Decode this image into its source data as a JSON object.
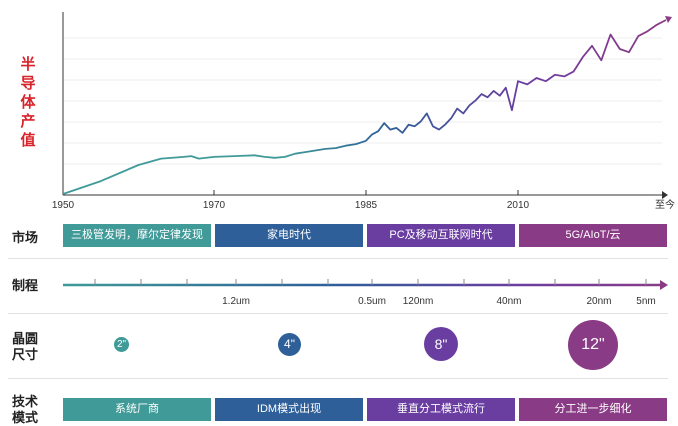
{
  "chart_data": {
    "type": "line",
    "ylabel": "半导体产值",
    "x_ticks": [
      "1950",
      "1970",
      "1985",
      "2010",
      "至今"
    ],
    "series": [
      {
        "values": [
          {
            "x": 1950,
            "y": 0
          },
          {
            "x": 1955,
            "y": 8
          },
          {
            "x": 1960,
            "y": 18
          },
          {
            "x": 1963,
            "y": 22
          },
          {
            "x": 1966,
            "y": 23
          },
          {
            "x": 1967,
            "y": 23.5
          },
          {
            "x": 1968,
            "y": 22
          },
          {
            "x": 1970,
            "y": 23
          },
          {
            "x": 1972,
            "y": 23.5
          },
          {
            "x": 1974,
            "y": 24
          },
          {
            "x": 1975,
            "y": 23
          },
          {
            "x": 1976,
            "y": 22.5
          },
          {
            "x": 1977,
            "y": 23
          },
          {
            "x": 1978,
            "y": 25
          },
          {
            "x": 1979,
            "y": 26
          },
          {
            "x": 1980,
            "y": 27
          },
          {
            "x": 1981,
            "y": 28
          },
          {
            "x": 1982,
            "y": 28.5
          },
          {
            "x": 1983,
            "y": 30
          },
          {
            "x": 1984,
            "y": 31
          },
          {
            "x": 1985,
            "y": 33
          },
          {
            "x": 1986,
            "y": 37
          },
          {
            "x": 1987,
            "y": 39
          },
          {
            "x": 1988,
            "y": 44
          },
          {
            "x": 1989,
            "y": 40
          },
          {
            "x": 1990,
            "y": 41
          },
          {
            "x": 1991,
            "y": 38
          },
          {
            "x": 1992,
            "y": 43
          },
          {
            "x": 1993,
            "y": 42
          },
          {
            "x": 1994,
            "y": 45
          },
          {
            "x": 1995,
            "y": 50
          },
          {
            "x": 1996,
            "y": 42
          },
          {
            "x": 1997,
            "y": 40
          },
          {
            "x": 1998,
            "y": 43
          },
          {
            "x": 1999,
            "y": 47
          },
          {
            "x": 2000,
            "y": 53
          },
          {
            "x": 2001,
            "y": 50
          },
          {
            "x": 2002,
            "y": 55
          },
          {
            "x": 2003,
            "y": 58
          },
          {
            "x": 2004,
            "y": 62
          },
          {
            "x": 2005,
            "y": 60
          },
          {
            "x": 2006,
            "y": 64
          },
          {
            "x": 2007,
            "y": 61
          },
          {
            "x": 2008,
            "y": 66
          },
          {
            "x": 2009,
            "y": 52
          },
          {
            "x": 2010,
            "y": 70
          },
          {
            "x": 2011,
            "y": 68
          },
          {
            "x": 2012,
            "y": 72
          },
          {
            "x": 2013,
            "y": 70
          },
          {
            "x": 2014,
            "y": 74
          },
          {
            "x": 2015,
            "y": 73
          },
          {
            "x": 2016,
            "y": 76
          },
          {
            "x": 2017,
            "y": 85
          },
          {
            "x": 2018,
            "y": 92
          },
          {
            "x": 2019,
            "y": 83
          },
          {
            "x": 2020,
            "y": 99
          },
          {
            "x": 2021,
            "y": 90
          },
          {
            "x": 2022,
            "y": 88
          },
          {
            "x": 2023,
            "y": 98
          },
          {
            "x": 2024,
            "y": 101
          },
          {
            "x": 2025,
            "y": 105
          },
          {
            "x": 2026,
            "y": 108
          }
        ],
        "colors": [
          "#3f9a98",
          "#2e5f99",
          "#6a3ea1",
          "#8a3b86"
        ]
      }
    ],
    "grid": true
  },
  "rows": {
    "market": {
      "label": "市场",
      "bars": [
        {
          "text": "三极管发明，摩尔定律发现"
        },
        {
          "text": "家电时代"
        },
        {
          "text": "PC及移动互联网时代"
        },
        {
          "text": "5G/AIoT/云"
        }
      ]
    },
    "process": {
      "label": "制程",
      "ticks": [
        "1.2um",
        "0.5um",
        "120nm",
        "40nm",
        "20nm",
        "5nm"
      ]
    },
    "wafer": {
      "label_line1": "晶圆",
      "label_line2": "尺寸",
      "sizes": [
        "2\"",
        "4\"",
        "8\"",
        "12\""
      ]
    },
    "tech": {
      "label_line1": "技术",
      "label_line2": "模式",
      "bars": [
        {
          "text": "系统厂商"
        },
        {
          "text": "IDM模式出现"
        },
        {
          "text": "垂直分工模式流行"
        },
        {
          "text": "分工进一步细化"
        }
      ]
    }
  }
}
